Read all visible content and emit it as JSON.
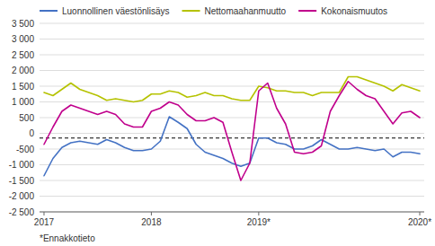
{
  "chart_data": {
    "type": "line",
    "footnote": "*Ennakkotieto",
    "categories": [
      "2017",
      null,
      null,
      null,
      null,
      null,
      null,
      null,
      null,
      null,
      null,
      null,
      "2018",
      null,
      null,
      null,
      null,
      null,
      null,
      null,
      null,
      null,
      null,
      null,
      "2019*",
      null,
      null,
      null,
      null,
      null,
      null,
      null,
      null,
      null,
      null,
      null,
      null,
      null,
      null,
      null,
      null,
      null,
      "2020*"
    ],
    "series": [
      {
        "name": "Luonnollinen väestönlisäys",
        "color": "#4472c4",
        "values": [
          -1350,
          -800,
          -450,
          -300,
          -250,
          -300,
          -350,
          -200,
          -300,
          -450,
          -550,
          -550,
          -500,
          -250,
          530,
          350,
          150,
          -350,
          -600,
          -700,
          -800,
          -950,
          -1050,
          -950,
          -150,
          -150,
          -300,
          -350,
          -500,
          -500,
          -400,
          -200,
          -350,
          -500,
          -500,
          -450,
          -500,
          -550,
          -500,
          -750,
          -600,
          -600,
          -650
        ]
      },
      {
        "name": "Nettomaahanmuutto",
        "color": "#b5c200",
        "values": [
          1300,
          1200,
          1400,
          1600,
          1400,
          1300,
          1200,
          1050,
          1100,
          1050,
          1000,
          1050,
          1250,
          1250,
          1350,
          1300,
          1150,
          1200,
          1300,
          1200,
          1200,
          1100,
          1050,
          1050,
          1500,
          1450,
          1350,
          1350,
          1300,
          1300,
          1200,
          1300,
          1300,
          1300,
          1800,
          1800,
          1700,
          1600,
          1500,
          1350,
          1550,
          1450,
          1350
        ]
      },
      {
        "name": "Kokonaismuutos",
        "color": "#c0008c",
        "values": [
          -350,
          200,
          700,
          900,
          800,
          700,
          600,
          700,
          600,
          300,
          200,
          200,
          700,
          800,
          1000,
          900,
          600,
          400,
          400,
          500,
          350,
          -600,
          -1500,
          -950,
          1350,
          1600,
          800,
          300,
          -600,
          -650,
          -600,
          -400,
          700,
          1200,
          1650,
          1400,
          1200,
          1100,
          700,
          300,
          650,
          700,
          500
        ]
      }
    ],
    "reference_line": -150,
    "ylim": [
      -2500,
      3500
    ],
    "yticks": [
      {
        "value": -2500,
        "label": "-2 500"
      },
      {
        "value": -2000,
        "label": "-2 000"
      },
      {
        "value": -1500,
        "label": "-1 500"
      },
      {
        "value": -1000,
        "label": "-1 000"
      },
      -500,
      0,
      500,
      {
        "value": 1000,
        "label": "1 000"
      },
      {
        "value": 1500,
        "label": "1 500"
      },
      {
        "value": 2000,
        "label": "2 000"
      },
      {
        "value": 2500,
        "label": "2 500"
      },
      {
        "value": 3000,
        "label": "3 000"
      },
      {
        "value": 3500,
        "label": "3 500"
      }
    ],
    "grid": true,
    "legend": "top-left"
  }
}
